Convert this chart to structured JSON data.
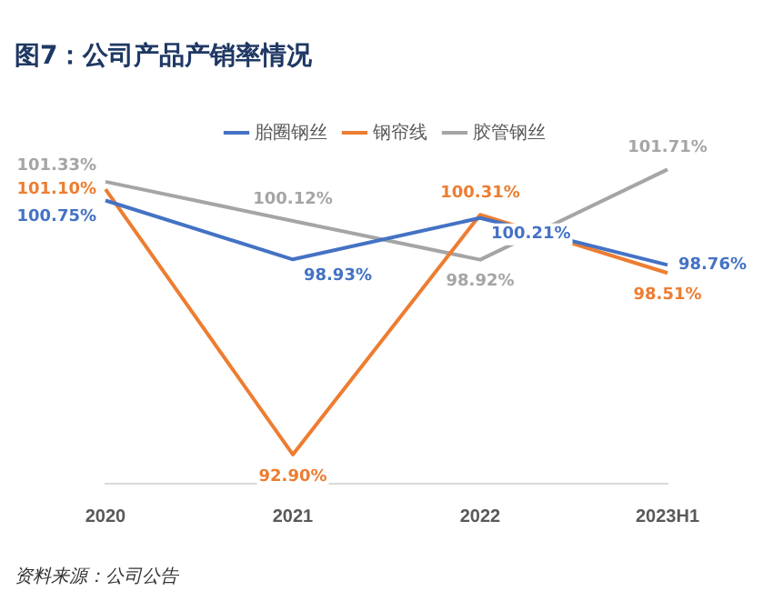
{
  "chart_data": {
    "type": "line",
    "title": "图7：公司产品产销率情况",
    "categories": [
      "2020",
      "2021",
      "2022",
      "2023H1"
    ],
    "series": [
      {
        "name": "胎圈钢丝",
        "color": "#4472c4",
        "values": [
          100.75,
          98.93,
          100.21,
          98.76
        ],
        "value_labels": [
          "100.75%",
          "98.93%",
          "100.21%",
          "98.76%"
        ]
      },
      {
        "name": "钢帘线",
        "color": "#ed7d31",
        "values": [
          101.1,
          92.9,
          100.31,
          98.51
        ],
        "value_labels": [
          "101.10%",
          "92.90%",
          "100.31%",
          "98.51%"
        ]
      },
      {
        "name": "胶管钢丝",
        "color": "#a5a5a5",
        "values": [
          101.33,
          100.12,
          98.92,
          101.71
        ],
        "value_labels": [
          "101.33%",
          "100.12%",
          "98.92%",
          "101.71%"
        ]
      }
    ],
    "legend": "top",
    "grid": false,
    "marker": "none",
    "line_style": "solid",
    "tick_labels": "x",
    "annotations": [
      "资料来源：公司公告"
    ]
  }
}
